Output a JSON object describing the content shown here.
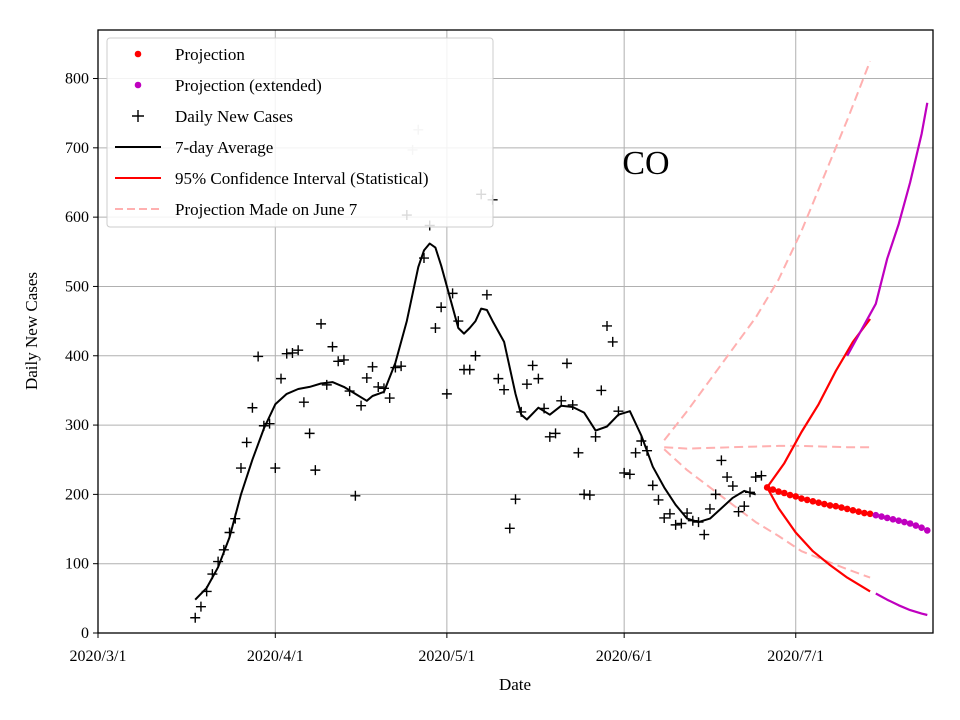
{
  "chart_data": {
    "type": "scatter",
    "title": "",
    "annotation": "CO",
    "xlabel": "Date",
    "ylabel": "Daily New Cases",
    "x_ticks": [
      {
        "day": 0,
        "label": "2020/3/1"
      },
      {
        "day": 31,
        "label": "2020/4/1"
      },
      {
        "day": 61,
        "label": "2020/5/1"
      },
      {
        "day": 92,
        "label": "2020/6/1"
      },
      {
        "day": 122,
        "label": "2020/7/1"
      }
    ],
    "y_ticks": [
      0,
      100,
      200,
      300,
      400,
      500,
      600,
      700,
      800
    ],
    "xlim": [
      0,
      146
    ],
    "ylim": [
      0,
      870
    ],
    "grid": true,
    "legend_position": "top-left",
    "legend": [
      {
        "label": "Projection",
        "kind": "dot",
        "color": "#ff0000"
      },
      {
        "label": "Projection (extended)",
        "kind": "dot",
        "color": "#bf00bf"
      },
      {
        "label": "Daily New Cases",
        "kind": "plus",
        "color": "#000000"
      },
      {
        "label": "7-day Average",
        "kind": "line",
        "color": "#000000"
      },
      {
        "label": "95% Confidence Interval (Statistical)",
        "kind": "line",
        "color": "#ff0000"
      },
      {
        "label": "Projection Made on June 7",
        "kind": "dash",
        "color": "#ffb0b0"
      }
    ],
    "series": [
      {
        "name": "Daily New Cases",
        "x": [
          17,
          18,
          19,
          20,
          21,
          22,
          23,
          24,
          25,
          26,
          27,
          28,
          29,
          30,
          31,
          32,
          33,
          34,
          35,
          36,
          37,
          38,
          39,
          40,
          41,
          42,
          43,
          44,
          45,
          46,
          47,
          48,
          49,
          50,
          51,
          52,
          53,
          54,
          55,
          56,
          57,
          58,
          59,
          60,
          61,
          62,
          63,
          64,
          65,
          66,
          67,
          68,
          69,
          70,
          71,
          72,
          73,
          74,
          75,
          76,
          77,
          78,
          79,
          80,
          81,
          82,
          83,
          84,
          85,
          86,
          87,
          88,
          89,
          90,
          91,
          92,
          93,
          94,
          95,
          96,
          97,
          98,
          99,
          100,
          101,
          102,
          103,
          104,
          105,
          106,
          107,
          108,
          109,
          110,
          111,
          112,
          113,
          114,
          115,
          116
        ],
        "y": [
          22,
          38,
          60,
          85,
          103,
          120,
          145,
          165,
          238,
          275,
          325,
          399,
          299,
          302,
          238,
          367,
          403,
          404,
          408,
          333,
          288,
          235,
          446,
          358,
          413,
          392,
          394,
          349,
          198,
          328,
          368,
          384,
          355,
          353,
          339,
          383,
          385,
          603,
          697,
          726,
          541,
          588,
          440,
          470,
          345,
          490,
          450,
          380,
          380,
          400,
          633,
          488,
          625,
          367,
          351,
          151,
          193,
          319,
          359,
          386,
          367,
          324,
          283,
          288,
          335,
          389,
          329,
          260,
          200,
          199,
          283,
          350,
          443,
          420,
          320,
          231,
          229,
          260,
          277,
          263,
          213,
          192,
          166,
          172,
          156,
          158,
          173,
          162,
          160,
          142,
          179,
          200,
          249,
          225,
          212,
          175,
          183,
          203,
          225,
          227
        ]
      },
      {
        "name": "7-day Average",
        "x": [
          17,
          19,
          21,
          23,
          25,
          27,
          29,
          31,
          33,
          35,
          37,
          39,
          41,
          43,
          45,
          47,
          48,
          50,
          52,
          54,
          56,
          57,
          58,
          59,
          60,
          62,
          63,
          64,
          65,
          66,
          67,
          68,
          69,
          71,
          73,
          74,
          75,
          77,
          79,
          81,
          83,
          85,
          87,
          89,
          91,
          93,
          95,
          97,
          99,
          101,
          103,
          105,
          107,
          109,
          111,
          113,
          115
        ],
        "y": [
          48,
          65,
          95,
          138,
          200,
          250,
          295,
          330,
          345,
          352,
          355,
          360,
          362,
          355,
          345,
          335,
          342,
          348,
          390,
          450,
          528,
          552,
          562,
          556,
          530,
          470,
          440,
          432,
          440,
          450,
          468,
          466,
          450,
          420,
          345,
          315,
          308,
          325,
          315,
          328,
          326,
          318,
          292,
          298,
          315,
          320,
          285,
          240,
          210,
          185,
          165,
          160,
          165,
          180,
          195,
          205,
          200
        ]
      },
      {
        "name": "Projection",
        "x": [
          117,
          118,
          119,
          120,
          121,
          122,
          123,
          124,
          125,
          126,
          127,
          128,
          129,
          130,
          131,
          132,
          133,
          134,
          135
        ],
        "y": [
          210,
          207,
          204,
          202,
          199,
          197,
          194,
          192,
          190,
          188,
          186,
          184,
          183,
          181,
          179,
          177,
          175,
          173,
          172
        ]
      },
      {
        "name": "Projection (extended)",
        "x": [
          136,
          137,
          138,
          139,
          140,
          141,
          142,
          143,
          144,
          145
        ],
        "y": [
          170,
          168,
          166,
          164,
          162,
          160,
          158,
          155,
          152,
          148
        ]
      },
      {
        "name": "95% Confidence Interval (Statistical) upper",
        "x": [
          117,
          120,
          123,
          126,
          129,
          132,
          135
        ],
        "y": [
          210,
          245,
          290,
          330,
          378,
          420,
          453
        ]
      },
      {
        "name": "95% Confidence Interval (Statistical) lower",
        "x": [
          117,
          119,
          122,
          125,
          128,
          131,
          135
        ],
        "y": [
          210,
          180,
          145,
          118,
          98,
          80,
          60
        ]
      },
      {
        "name": "95% Confidence Interval (extended) upper",
        "x": [
          131,
          136,
          138,
          140,
          142,
          144,
          145
        ],
        "y": [
          400,
          475,
          540,
          590,
          650,
          720,
          765
        ]
      },
      {
        "name": "95% Confidence Interval (extended) lower",
        "x": [
          136,
          138,
          140,
          142,
          144,
          145
        ],
        "y": [
          57,
          48,
          40,
          33,
          28,
          26
        ]
      },
      {
        "name": "Projection Made on June 7 upper",
        "x": [
          99,
          103,
          107,
          111,
          115,
          119,
          123,
          127,
          131,
          135
        ],
        "y": [
          278,
          320,
          365,
          410,
          455,
          510,
          580,
          660,
          740,
          825
        ]
      },
      {
        "name": "Projection Made on June 7 middle",
        "x": [
          99,
          103,
          107,
          111,
          115,
          119,
          123,
          127,
          131,
          135
        ],
        "y": [
          268,
          266,
          267,
          268,
          269,
          270,
          270,
          269,
          268,
          268
        ]
      },
      {
        "name": "Projection Made on June 7 lower",
        "x": [
          99,
          103,
          107,
          111,
          115,
          119,
          123,
          127,
          131,
          135
        ],
        "y": [
          265,
          235,
          210,
          185,
          160,
          140,
          118,
          105,
          92,
          80
        ]
      }
    ]
  }
}
